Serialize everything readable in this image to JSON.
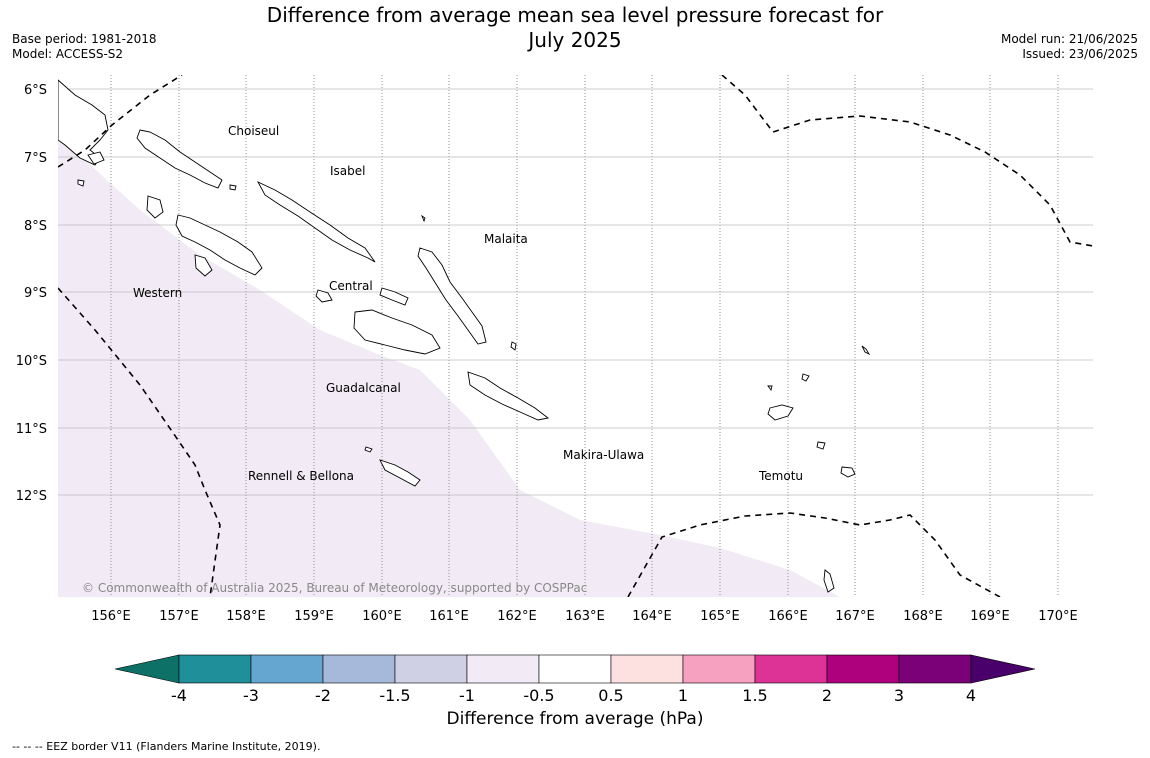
{
  "title_line1": "Difference from average mean sea level pressure forecast for",
  "title_line2": "July 2025",
  "meta_left": [
    "Base period: 1981-2018",
    "Model: ACCESS-S2"
  ],
  "meta_right": [
    "Model run: 21/06/2025",
    "Issued: 23/06/2025"
  ],
  "lat_labels": [
    "6°S",
    "7°S",
    "8°S",
    "9°S",
    "10°S",
    "11°S",
    "12°S"
  ],
  "lon_labels": [
    "156°E",
    "157°E",
    "158°E",
    "159°E",
    "160°E",
    "161°E",
    "162°E",
    "163°E",
    "164°E",
    "165°E",
    "166°E",
    "167°E",
    "168°E",
    "169°E",
    "170°E"
  ],
  "regions": [
    {
      "name": "Choiseul"
    },
    {
      "name": "Isabel"
    },
    {
      "name": "Malaita"
    },
    {
      "name": "Central"
    },
    {
      "name": "Western"
    },
    {
      "name": "Guadalcanal"
    },
    {
      "name": "Makira-Ulawa"
    },
    {
      "name": "Temotu"
    },
    {
      "name": "Rennell & Bellona"
    }
  ],
  "copyright": "© Commonwealth of Australia 2025, Bureau of Meteorology, supported by COSPPac",
  "colorbar": {
    "label": "Difference from average (hPa)",
    "ticks": [
      "-4",
      "-3",
      "-2",
      "-1.5",
      "-1",
      "-0.5",
      "0.5",
      "1",
      "1.5",
      "2",
      "3",
      "4"
    ],
    "colors": [
      "#0e7168",
      "#1f8f99",
      "#65a6d1",
      "#a7b9db",
      "#cfd0e4",
      "#f2ebf5",
      "#ffffff",
      "#fde0e0",
      "#f6a1c0",
      "#dd3397",
      "#ae017e",
      "#7a0177",
      "#49006a"
    ]
  },
  "legend_note": "--  --  -- EEZ border V11 (Flanders Marine Institute, 2019)."
}
